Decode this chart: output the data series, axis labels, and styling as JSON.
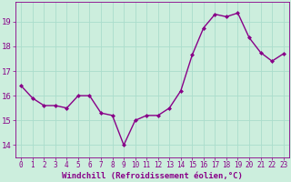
{
  "x": [
    0,
    1,
    2,
    3,
    4,
    5,
    6,
    7,
    8,
    9,
    10,
    11,
    12,
    13,
    14,
    15,
    16,
    17,
    18,
    19,
    20,
    21,
    22,
    23
  ],
  "y": [
    16.4,
    15.9,
    15.6,
    15.6,
    15.5,
    16.0,
    16.0,
    15.3,
    15.2,
    14.0,
    15.0,
    15.2,
    15.2,
    15.5,
    16.2,
    17.65,
    18.75,
    19.3,
    19.2,
    19.35,
    18.35,
    17.75,
    17.4,
    17.7
  ],
  "line_color": "#880088",
  "marker": "D",
  "marker_size": 2.0,
  "linewidth": 1.0,
  "xlabel": "Windchill (Refroidissement éolien,°C)",
  "xlabel_fontsize": 6.5,
  "xtick_labels": [
    "0",
    "1",
    "2",
    "3",
    "4",
    "5",
    "6",
    "7",
    "8",
    "9",
    "10",
    "11",
    "12",
    "13",
    "14",
    "15",
    "16",
    "17",
    "18",
    "19",
    "20",
    "21",
    "22",
    "23"
  ],
  "ytick_labels": [
    "14",
    "15",
    "16",
    "17",
    "18",
    "19"
  ],
  "ytick_vals": [
    14,
    15,
    16,
    17,
    18,
    19
  ],
  "ylim": [
    13.5,
    19.8
  ],
  "xlim": [
    -0.5,
    23.5
  ],
  "bg_color": "#cceedd",
  "grid_color": "#aaddcc",
  "tick_color": "#880088",
  "label_color": "#880088",
  "xtick_fontsize": 5.5,
  "ytick_fontsize": 6.5
}
